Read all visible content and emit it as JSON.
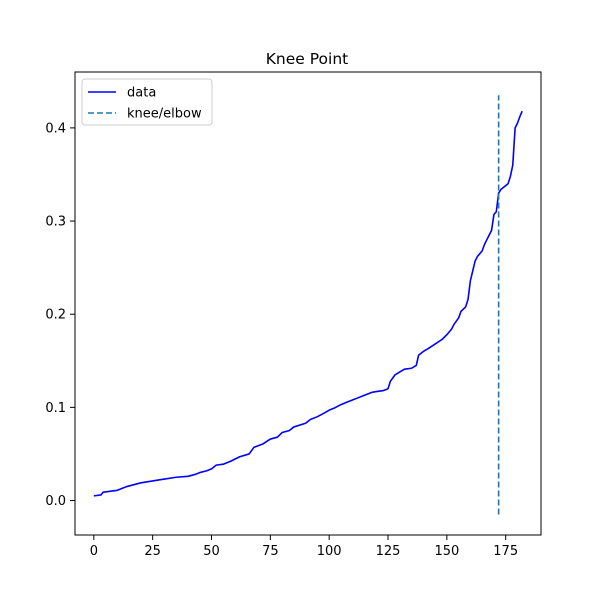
{
  "chart_data": {
    "type": "line",
    "title": "Knee Point",
    "xlabel": "",
    "ylabel": "",
    "xlim": [
      -8,
      190
    ],
    "ylim": [
      -0.037,
      0.46
    ],
    "xticks": [
      0,
      25,
      50,
      75,
      100,
      125,
      150,
      175
    ],
    "xtick_labels": [
      "0",
      "25",
      "50",
      "75",
      "100",
      "125",
      "150",
      "175"
    ],
    "yticks": [
      0.0,
      0.1,
      0.2,
      0.3,
      0.4
    ],
    "ytick_labels": [
      "0.0",
      "0.1",
      "0.2",
      "0.3",
      "0.4"
    ],
    "grid": false,
    "legend_position": "top-left",
    "series": [
      {
        "name": "data",
        "color": "#0000ff",
        "style": "solid",
        "x": [
          0,
          3,
          4,
          10,
          12,
          14,
          17,
          20,
          25,
          30,
          35,
          40,
          43,
          45,
          48,
          50,
          52,
          55,
          58,
          62,
          66,
          68,
          72,
          75,
          78,
          80,
          83,
          85,
          90,
          92,
          95,
          98,
          100,
          102,
          105,
          108,
          110,
          112,
          115,
          118,
          120,
          123,
          125,
          126,
          128,
          130,
          132,
          135,
          137,
          138,
          140,
          142,
          145,
          148,
          150,
          152,
          153,
          155,
          156,
          158,
          159,
          160,
          162,
          163,
          165,
          166,
          167,
          168,
          169,
          170,
          171,
          172,
          173,
          174,
          175,
          176,
          177,
          178,
          179,
          180,
          181,
          182
        ],
        "y": [
          0.005,
          0.006,
          0.009,
          0.011,
          0.013,
          0.015,
          0.017,
          0.019,
          0.021,
          0.023,
          0.025,
          0.026,
          0.028,
          0.03,
          0.032,
          0.034,
          0.038,
          0.039,
          0.042,
          0.047,
          0.05,
          0.057,
          0.061,
          0.066,
          0.068,
          0.073,
          0.075,
          0.079,
          0.083,
          0.087,
          0.09,
          0.094,
          0.097,
          0.099,
          0.103,
          0.106,
          0.108,
          0.11,
          0.113,
          0.116,
          0.117,
          0.118,
          0.12,
          0.128,
          0.135,
          0.138,
          0.141,
          0.142,
          0.145,
          0.156,
          0.16,
          0.163,
          0.168,
          0.173,
          0.178,
          0.184,
          0.189,
          0.196,
          0.203,
          0.208,
          0.216,
          0.236,
          0.257,
          0.262,
          0.268,
          0.275,
          0.28,
          0.285,
          0.29,
          0.307,
          0.31,
          0.33,
          0.334,
          0.336,
          0.338,
          0.34,
          0.348,
          0.36,
          0.4,
          0.405,
          0.412,
          0.418
        ]
      },
      {
        "name": "knee/elbow",
        "color": "#1f77b4",
        "style": "dashed",
        "x": [
          172,
          172
        ],
        "y": [
          -0.015,
          0.435
        ]
      }
    ]
  }
}
